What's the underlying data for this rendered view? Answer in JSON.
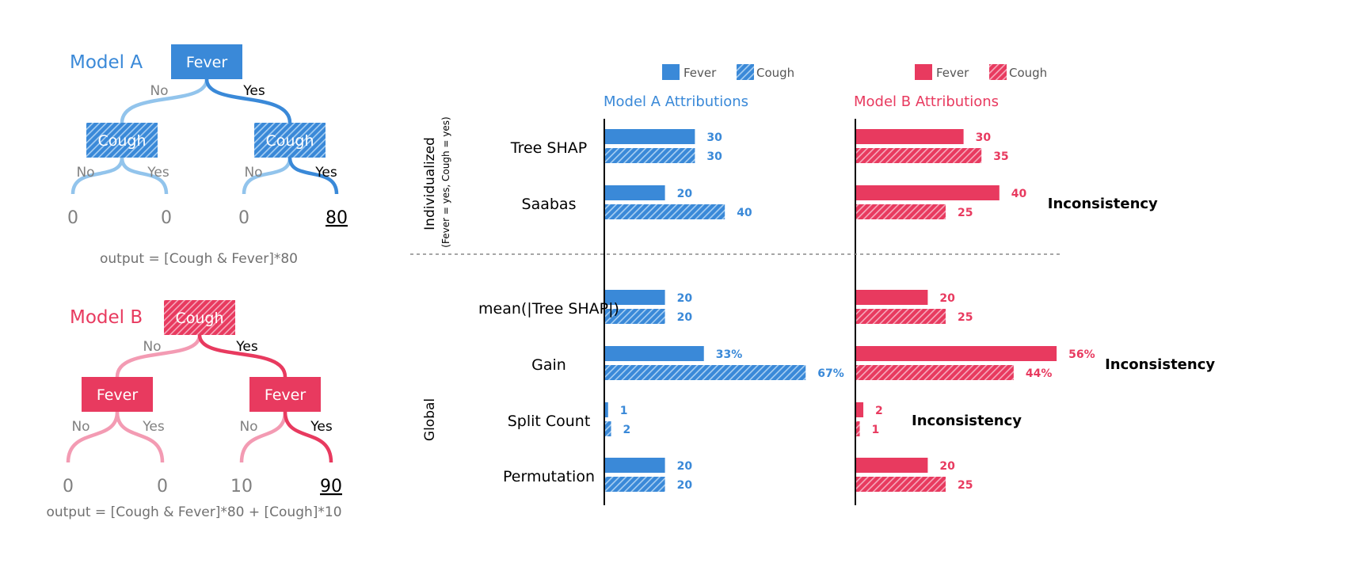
{
  "colors": {
    "blue": "#3a89d8",
    "blue_light": "#92c4ec",
    "red": "#e83a5f",
    "red_light": "#f39bb3",
    "gray": "#808080"
  },
  "model_a": {
    "title": "Model A",
    "root": "Fever",
    "left_node": "Cough",
    "right_node": "Cough",
    "no": "No",
    "yes": "Yes",
    "leaves": [
      "0",
      "0",
      "0",
      "80"
    ],
    "output": "output = [Cough & Fever]*80"
  },
  "model_b": {
    "title": "Model B",
    "root": "Cough",
    "left_node": "Fever",
    "right_node": "Fever",
    "no": "No",
    "yes": "Yes",
    "leaves": [
      "0",
      "0",
      "10",
      "90"
    ],
    "output": "output = [Cough & Fever]*80 + [Cough]*10"
  },
  "chart_data": {
    "type": "bar",
    "orientation": "horizontal",
    "panels": [
      {
        "title": "Model A Attributions",
        "color": "#3a89d8",
        "legend": [
          "Fever",
          "Cough"
        ]
      },
      {
        "title": "Model B Attributions",
        "color": "#e83a5f",
        "legend": [
          "Fever",
          "Cough"
        ]
      }
    ],
    "group_labels": {
      "individualized": "Individualized",
      "individualized_sub": "(Fever = yes, Cough = yes)",
      "global": "Global"
    },
    "methods": [
      {
        "name": "Tree SHAP",
        "group": "individualized",
        "a": {
          "fever": "30",
          "cough": "30"
        },
        "b": {
          "fever": "30",
          "cough": "35"
        },
        "a_vals": [
          30,
          30
        ],
        "b_vals": [
          30,
          35
        ],
        "b_note": ""
      },
      {
        "name": "Saabas",
        "group": "individualized",
        "a": {
          "fever": "20",
          "cough": "40"
        },
        "b": {
          "fever": "40",
          "cough": "25"
        },
        "a_vals": [
          20,
          40
        ],
        "b_vals": [
          40,
          25
        ],
        "b_note": "Inconsistency"
      },
      {
        "name": "mean(|Tree SHAP|)",
        "group": "global",
        "a": {
          "fever": "20",
          "cough": "20"
        },
        "b": {
          "fever": "20",
          "cough": "25"
        },
        "a_vals": [
          20,
          20
        ],
        "b_vals": [
          20,
          25
        ],
        "b_note": ""
      },
      {
        "name": "Gain",
        "group": "global",
        "a": {
          "fever": "33%",
          "cough": "67%"
        },
        "b": {
          "fever": "56%",
          "cough": "44%"
        },
        "a_vals": [
          33,
          67
        ],
        "b_vals": [
          56,
          44
        ],
        "b_note": "Inconsistency"
      },
      {
        "name": "Split Count",
        "group": "global",
        "a": {
          "fever": "1",
          "cough": "2"
        },
        "b": {
          "fever": "2",
          "cough": "1"
        },
        "a_vals": [
          1,
          2
        ],
        "b_vals": [
          2,
          1
        ],
        "b_note": "Inconsistency"
      },
      {
        "name": "Permutation",
        "group": "global",
        "a": {
          "fever": "20",
          "cough": "20"
        },
        "b": {
          "fever": "20",
          "cough": "25"
        },
        "a_vals": [
          20,
          20
        ],
        "b_vals": [
          20,
          25
        ],
        "b_note": ""
      }
    ]
  }
}
